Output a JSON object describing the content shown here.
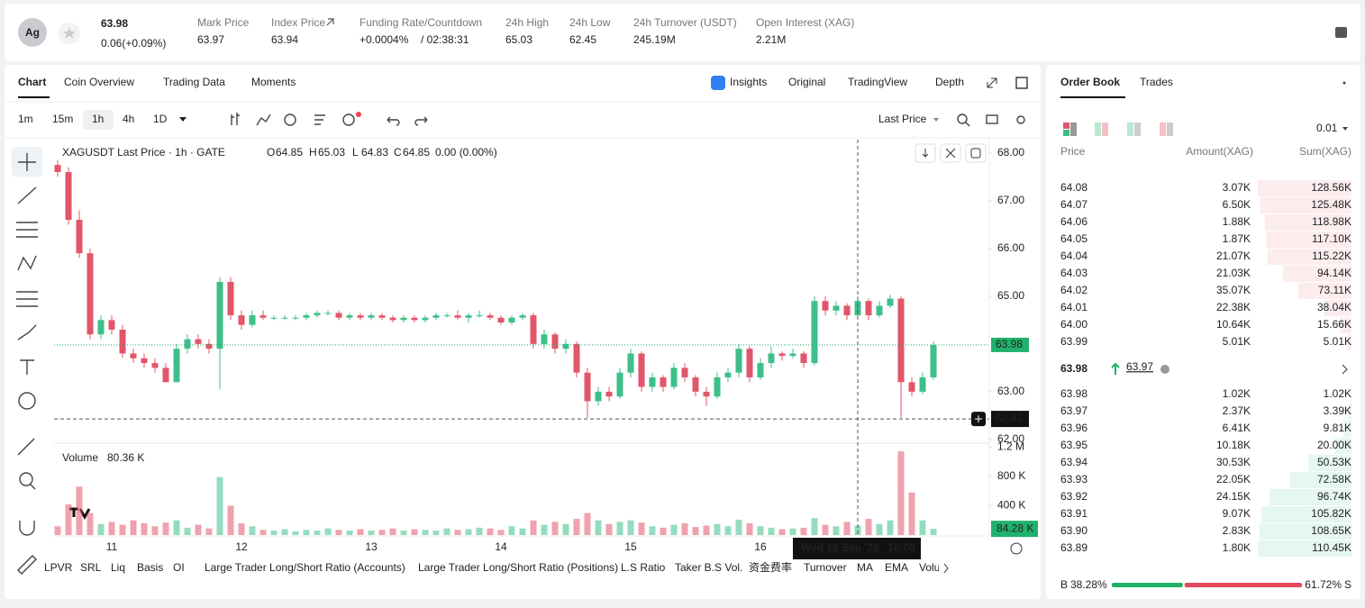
{
  "header": {
    "avatar": "Ag",
    "price": "63.98",
    "change": "0.06(+0.09%)",
    "stats": [
      {
        "label": "Mark Price",
        "value": "63.97"
      },
      {
        "label": "Index Price",
        "value": "63.94"
      }
    ],
    "funding": {
      "label": "Funding Rate/Countdown",
      "rate": "+0.0004%",
      "countdown": "/ 02:38:31"
    },
    "stats2": [
      {
        "label": "24h High",
        "value": "65.03"
      },
      {
        "label": "24h Low",
        "value": "62.45"
      },
      {
        "label": "24h Turnover (USDT)",
        "value": "245.19M"
      },
      {
        "label": "Open Interest (XAG)",
        "value": "2.21M"
      }
    ]
  },
  "tabs": [
    "Chart",
    "Coin Overview",
    "Trading Data",
    "Moments"
  ],
  "views": [
    "Insights",
    "Original",
    "TradingView",
    "Depth"
  ],
  "intervals": [
    "1m",
    "15m",
    "1h",
    "4h",
    "1D"
  ],
  "price_type": "Last Price",
  "chart_data": {
    "type": "candlestick",
    "title": "XAGUSDT Last Price · 1h · GATE",
    "legend": [
      {
        "key": "O",
        "value": "64.85"
      },
      {
        "key": "H",
        "value": "65.03"
      },
      {
        "key": "L",
        "value": "64.83"
      },
      {
        "key": "C",
        "value": "64.85"
      }
    ],
    "legend_change": "0.00 (0.00%)",
    "up_color": "#3dbf8a",
    "down_color": "#e2566a",
    "ohlc": [
      [
        67.75,
        67.85,
        67.5,
        67.6
      ],
      [
        67.6,
        67.7,
        66.5,
        66.6
      ],
      [
        66.6,
        66.8,
        65.8,
        65.9
      ],
      [
        65.9,
        66.0,
        64.1,
        64.2
      ],
      [
        64.2,
        64.6,
        64.1,
        64.5
      ],
      [
        64.5,
        64.6,
        64.2,
        64.3
      ],
      [
        64.3,
        64.4,
        63.7,
        63.8
      ],
      [
        63.8,
        63.9,
        63.6,
        63.7
      ],
      [
        63.7,
        63.8,
        63.5,
        63.6
      ],
      [
        63.6,
        63.7,
        63.4,
        63.5
      ],
      [
        63.5,
        63.6,
        63.2,
        63.2
      ],
      [
        63.2,
        64.0,
        63.2,
        63.9
      ],
      [
        63.9,
        64.2,
        63.8,
        64.1
      ],
      [
        64.1,
        64.2,
        63.9,
        64.0
      ],
      [
        64.0,
        64.1,
        63.8,
        63.9
      ],
      [
        63.9,
        65.4,
        63.05,
        65.3
      ],
      [
        65.3,
        65.4,
        64.5,
        64.6
      ],
      [
        64.6,
        64.7,
        64.3,
        64.4
      ],
      [
        64.4,
        64.7,
        64.35,
        64.6
      ],
      [
        64.6,
        64.7,
        64.5,
        64.55
      ],
      [
        64.55,
        64.6,
        64.5,
        64.55
      ],
      [
        64.55,
        64.6,
        64.5,
        64.55
      ],
      [
        64.55,
        64.6,
        64.5,
        64.55
      ],
      [
        64.55,
        64.65,
        64.5,
        64.6
      ],
      [
        64.6,
        64.7,
        64.55,
        64.65
      ],
      [
        64.65,
        64.7,
        64.6,
        64.65
      ],
      [
        64.65,
        64.7,
        64.5,
        64.55
      ],
      [
        64.55,
        64.65,
        64.5,
        64.6
      ],
      [
        64.6,
        64.65,
        64.5,
        64.55
      ],
      [
        64.55,
        64.65,
        64.5,
        64.6
      ],
      [
        64.6,
        64.65,
        64.5,
        64.55
      ],
      [
        64.55,
        64.6,
        64.45,
        64.5
      ],
      [
        64.5,
        64.6,
        64.45,
        64.55
      ],
      [
        64.55,
        64.6,
        64.45,
        64.5
      ],
      [
        64.5,
        64.6,
        64.45,
        64.55
      ],
      [
        64.55,
        64.65,
        64.5,
        64.6
      ],
      [
        64.6,
        64.65,
        64.55,
        64.6
      ],
      [
        64.6,
        64.7,
        64.5,
        64.55
      ],
      [
        64.55,
        64.65,
        64.45,
        64.6
      ],
      [
        64.6,
        64.7,
        64.55,
        64.6
      ],
      [
        64.6,
        64.65,
        64.5,
        64.55
      ],
      [
        64.55,
        64.6,
        64.4,
        64.45
      ],
      [
        64.45,
        64.6,
        64.4,
        64.55
      ],
      [
        64.55,
        64.65,
        64.5,
        64.6
      ],
      [
        64.6,
        64.65,
        63.9,
        64.0
      ],
      [
        64.0,
        64.3,
        63.9,
        64.2
      ],
      [
        64.2,
        64.25,
        63.8,
        63.9
      ],
      [
        63.9,
        64.1,
        63.8,
        64.0
      ],
      [
        64.0,
        64.05,
        63.3,
        63.4
      ],
      [
        63.4,
        63.5,
        62.45,
        62.8
      ],
      [
        62.8,
        63.1,
        62.7,
        63.0
      ],
      [
        63.0,
        63.1,
        62.8,
        62.9
      ],
      [
        62.9,
        63.5,
        62.85,
        63.4
      ],
      [
        63.4,
        63.9,
        63.3,
        63.8
      ],
      [
        63.8,
        63.85,
        63.0,
        63.1
      ],
      [
        63.1,
        63.4,
        63.0,
        63.3
      ],
      [
        63.3,
        63.35,
        63.0,
        63.1
      ],
      [
        63.1,
        63.6,
        63.05,
        63.5
      ],
      [
        63.5,
        63.6,
        63.2,
        63.3
      ],
      [
        63.3,
        63.35,
        62.9,
        63.0
      ],
      [
        63.0,
        63.1,
        62.7,
        62.9
      ],
      [
        62.9,
        63.4,
        62.85,
        63.3
      ],
      [
        63.3,
        63.5,
        63.2,
        63.4
      ],
      [
        63.4,
        64.0,
        63.3,
        63.9
      ],
      [
        63.9,
        63.95,
        63.2,
        63.3
      ],
      [
        63.3,
        63.7,
        63.25,
        63.6
      ],
      [
        63.6,
        63.95,
        63.5,
        63.8
      ],
      [
        63.8,
        63.85,
        63.65,
        63.75
      ],
      [
        63.75,
        63.9,
        63.7,
        63.8
      ],
      [
        63.8,
        63.85,
        63.5,
        63.6
      ],
      [
        63.6,
        65.0,
        63.55,
        64.9
      ],
      [
        64.9,
        65.0,
        64.6,
        64.7
      ],
      [
        64.7,
        64.9,
        64.6,
        64.8
      ],
      [
        64.8,
        64.85,
        64.5,
        64.6
      ],
      [
        64.6,
        65.0,
        64.55,
        64.9
      ],
      [
        64.9,
        64.95,
        64.5,
        64.6
      ],
      [
        64.6,
        64.9,
        64.55,
        64.8
      ],
      [
        64.8,
        65.03,
        64.75,
        64.95
      ],
      [
        64.95,
        65.0,
        62.45,
        63.2
      ],
      [
        63.2,
        63.3,
        62.9,
        63.0
      ],
      [
        63.0,
        63.4,
        62.95,
        63.3
      ],
      [
        63.3,
        64.05,
        63.25,
        63.98
      ]
    ],
    "volume": [
      120000,
      420000,
      660000,
      300000,
      150000,
      180000,
      140000,
      200000,
      160000,
      120000,
      170000,
      200000,
      100000,
      140000,
      90000,
      790000,
      400000,
      160000,
      120000,
      70000,
      60000,
      80000,
      50000,
      70000,
      60000,
      90000,
      70000,
      60000,
      80000,
      60000,
      70000,
      90000,
      60000,
      80000,
      70000,
      60000,
      90000,
      70000,
      80000,
      100000,
      90000,
      70000,
      120000,
      90000,
      200000,
      140000,
      180000,
      150000,
      220000,
      300000,
      200000,
      150000,
      180000,
      200000,
      170000,
      120000,
      100000,
      140000,
      160000,
      110000,
      130000,
      150000,
      120000,
      210000,
      160000,
      120000,
      100000,
      80000,
      90000,
      100000,
      230000,
      140000,
      120000,
      180000,
      130000,
      220000,
      150000,
      200000,
      1140000,
      580000,
      200000,
      84280
    ],
    "ylim": [
      61.96,
      68.28
    ],
    "yticks": [
      {
        "value": 68,
        "label": "68.00"
      },
      {
        "value": 67,
        "label": "67.00"
      },
      {
        "value": 66,
        "label": "66.00"
      },
      {
        "value": 65,
        "label": "65.00"
      },
      {
        "value": 63,
        "label": "63.00"
      },
      {
        "value": 62,
        "label": "62.00"
      }
    ],
    "grid": false,
    "last_price": 63.98,
    "crosshair_price": 62.43,
    "volume_title": "Volume",
    "volume_value": "80.36 K",
    "volume_ylim": [
      0,
      1240000
    ],
    "volume_yticks": [
      {
        "value": 1200000,
        "label": "1.2 M"
      },
      {
        "value": 800000,
        "label": "800 K"
      },
      {
        "value": 400000,
        "label": "400 K"
      }
    ],
    "last_volume": {
      "value": 84280,
      "label": "84.28 K"
    },
    "x_labels": [
      "11",
      "12",
      "13",
      "14",
      "15",
      "16"
    ],
    "crosshair": {
      "date": "Wed 16 Sep '26",
      "time": "18:00"
    }
  },
  "indicators": [
    "LPVR",
    "SRL",
    "Liq",
    "Basis",
    "OI",
    "Large Trader Long/Short Ratio (Accounts)",
    "Large Trader Long/Short Ratio (Positions)",
    "L.S Ratio",
    "Taker B.S Vol.",
    "资金费率",
    "Turnover",
    "MA",
    "EMA",
    "Volume"
  ],
  "order_book": {
    "tabs": [
      "Order Book",
      "Trades"
    ],
    "precision": "0.01",
    "columns": [
      "Price",
      "Amount(XAG)",
      "Sum(XAG)"
    ],
    "asks": {
      "price": [
        "64.08",
        "64.07",
        "64.06",
        "64.05",
        "64.04",
        "64.03",
        "64.02",
        "64.01",
        "64.00",
        "63.99"
      ],
      "amount": [
        "3.07K",
        "6.50K",
        "1.88K",
        "1.87K",
        "21.07K",
        "21.03K",
        "35.07K",
        "22.38K",
        "10.64K",
        "5.01K"
      ],
      "sum": [
        128.56,
        125.48,
        118.98,
        117.1,
        115.22,
        94.14,
        73.11,
        38.04,
        15.66,
        5.01
      ],
      "sum_labels": [
        "128.56K",
        "125.48K",
        "118.98K",
        "117.10K",
        "115.22K",
        "94.14K",
        "73.11K",
        "38.04K",
        "15.66K",
        "5.01K"
      ]
    },
    "mid": {
      "price": "63.98",
      "mark": "63.97"
    },
    "bids": {
      "price": [
        "63.98",
        "63.97",
        "63.96",
        "63.95",
        "63.94",
        "63.93",
        "63.92",
        "63.91",
        "63.90",
        "63.89"
      ],
      "amount": [
        "1.02K",
        "2.37K",
        "6.41K",
        "10.18K",
        "30.53K",
        "22.05K",
        "24.15K",
        "9.07K",
        "2.83K",
        "1.80K"
      ],
      "sum": [
        1.02,
        3.39,
        9.81,
        20.0,
        50.53,
        72.58,
        96.74,
        105.82,
        108.65,
        110.45
      ],
      "sum_labels": [
        "1.02K",
        "3.39K",
        "9.81K",
        "20.00K",
        "50.53K",
        "72.58K",
        "96.74K",
        "105.82K",
        "108.65K",
        "110.45K"
      ]
    },
    "ratio": {
      "buy_label": "B",
      "buy": 38.28,
      "buy_text": "38.28%",
      "sell": 61.72,
      "sell_text": "61.72%",
      "sell_label": "S"
    }
  }
}
